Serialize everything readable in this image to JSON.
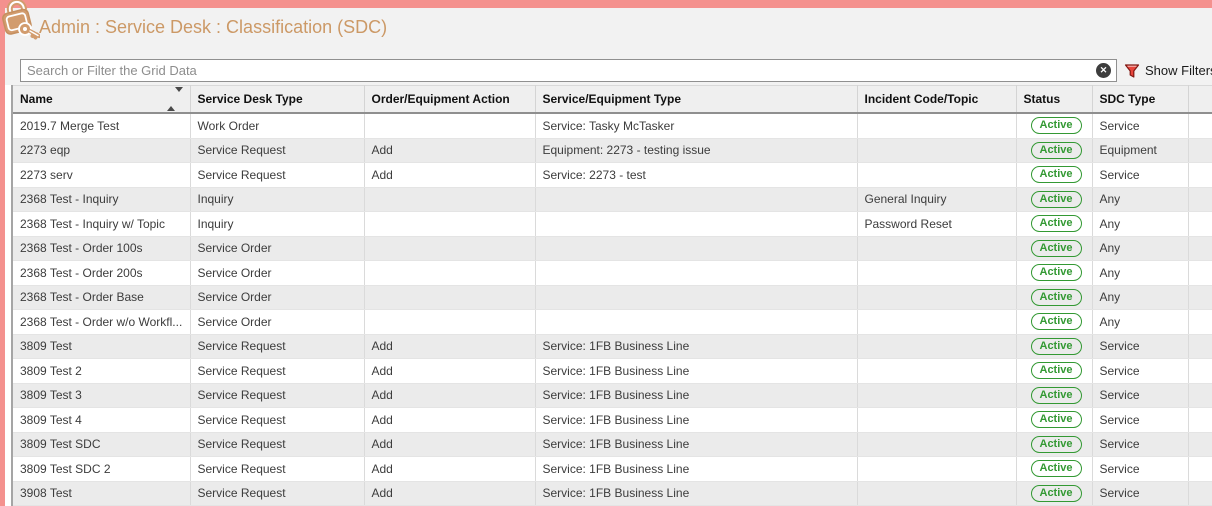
{
  "header": {
    "title": "Admin : Service Desk : Classification (SDC)",
    "icon": "padlock-key-icon"
  },
  "search": {
    "placeholder": "Search or Filter the Grid Data",
    "value": "",
    "clear_glyph": "✕"
  },
  "filter": {
    "label": "Show Filters",
    "icon": "funnel-icon"
  },
  "table": {
    "columns": [
      {
        "label": "Name",
        "sortable": true
      },
      {
        "label": "Service Desk Type"
      },
      {
        "label": "Order/Equipment Action"
      },
      {
        "label": "Service/Equipment Type"
      },
      {
        "label": "Incident Code/Topic"
      },
      {
        "label": "Status"
      },
      {
        "label": "SDC Type"
      }
    ],
    "rows": [
      {
        "name": "2019.7 Merge Test",
        "desk_type": "Work Order",
        "action": "",
        "type": "Service: Tasky McTasker",
        "topic": "",
        "status": "Active",
        "sdc_type": "Service"
      },
      {
        "name": "2273 eqp",
        "desk_type": "Service Request",
        "action": "Add",
        "type": "Equipment: 2273 - testing issue",
        "topic": "",
        "status": "Active",
        "sdc_type": "Equipment"
      },
      {
        "name": "2273 serv",
        "desk_type": "Service Request",
        "action": "Add",
        "type": "Service: 2273 - test",
        "topic": "",
        "status": "Active",
        "sdc_type": "Service"
      },
      {
        "name": "2368 Test - Inquiry",
        "desk_type": "Inquiry",
        "action": "",
        "type": "",
        "topic": "General Inquiry",
        "status": "Active",
        "sdc_type": "Any"
      },
      {
        "name": "2368 Test - Inquiry w/ Topic",
        "desk_type": "Inquiry",
        "action": "",
        "type": "",
        "topic": "Password Reset",
        "status": "Active",
        "sdc_type": "Any"
      },
      {
        "name": "2368 Test - Order 100s",
        "desk_type": "Service Order",
        "action": "",
        "type": "",
        "topic": "",
        "status": "Active",
        "sdc_type": "Any"
      },
      {
        "name": "2368 Test - Order 200s",
        "desk_type": "Service Order",
        "action": "",
        "type": "",
        "topic": "",
        "status": "Active",
        "sdc_type": "Any"
      },
      {
        "name": "2368 Test - Order Base",
        "desk_type": "Service Order",
        "action": "",
        "type": "",
        "topic": "",
        "status": "Active",
        "sdc_type": "Any"
      },
      {
        "name": "2368 Test - Order w/o Workfl...",
        "desk_type": "Service Order",
        "action": "",
        "type": "",
        "topic": "",
        "status": "Active",
        "sdc_type": "Any"
      },
      {
        "name": "3809 Test",
        "desk_type": "Service Request",
        "action": "Add",
        "type": "Service: 1FB Business Line",
        "topic": "",
        "status": "Active",
        "sdc_type": "Service"
      },
      {
        "name": "3809 Test 2",
        "desk_type": "Service Request",
        "action": "Add",
        "type": "Service: 1FB Business Line",
        "topic": "",
        "status": "Active",
        "sdc_type": "Service"
      },
      {
        "name": "3809 Test 3",
        "desk_type": "Service Request",
        "action": "Add",
        "type": "Service: 1FB Business Line",
        "topic": "",
        "status": "Active",
        "sdc_type": "Service"
      },
      {
        "name": "3809 Test 4",
        "desk_type": "Service Request",
        "action": "Add",
        "type": "Service: 1FB Business Line",
        "topic": "",
        "status": "Active",
        "sdc_type": "Service"
      },
      {
        "name": "3809 Test SDC",
        "desk_type": "Service Request",
        "action": "Add",
        "type": "Service: 1FB Business Line",
        "topic": "",
        "status": "Active",
        "sdc_type": "Service"
      },
      {
        "name": "3809 Test SDC 2",
        "desk_type": "Service Request",
        "action": "Add",
        "type": "Service: 1FB Business Line",
        "topic": "",
        "status": "Active",
        "sdc_type": "Service"
      },
      {
        "name": "3908 Test",
        "desk_type": "Service Request",
        "action": "Add",
        "type": "Service: 1FB Business Line",
        "topic": "",
        "status": "Active",
        "sdc_type": "Service"
      }
    ]
  },
  "colors": {
    "accent_pink": "#f4918e",
    "title_tan": "#cc9966",
    "status_green": "#339933",
    "filter_red": "#e8453c"
  }
}
